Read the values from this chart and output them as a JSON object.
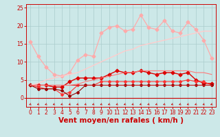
{
  "xlabel": "Vent moyen/en rafales ( km/h )",
  "bg_color": "#cce8e8",
  "grid_color": "#aacccc",
  "xlim": [
    -0.5,
    23.5
  ],
  "ylim": [
    -2.5,
    26
  ],
  "xticks": [
    0,
    1,
    2,
    3,
    4,
    5,
    6,
    7,
    8,
    9,
    10,
    11,
    12,
    13,
    14,
    15,
    16,
    17,
    18,
    19,
    20,
    21,
    22,
    23
  ],
  "yticks": [
    0,
    5,
    10,
    15,
    20,
    25
  ],
  "lines": [
    {
      "x": [
        0,
        1,
        2,
        3,
        4,
        5,
        6,
        7,
        8,
        9,
        10,
        11,
        12,
        13,
        14,
        15,
        16,
        17,
        18,
        19,
        20,
        21,
        22,
        23
      ],
      "y": [
        15.5,
        11.5,
        8.5,
        6.5,
        6.0,
        7.0,
        10.5,
        12.0,
        11.5,
        18.0,
        19.5,
        20.0,
        18.5,
        19.0,
        23.0,
        19.5,
        19.0,
        21.5,
        18.5,
        18.0,
        21.0,
        19.0,
        16.0,
        11.0
      ],
      "color": "#ffaaaa",
      "lw": 0.9,
      "marker": "D",
      "ms": 2.5
    },
    {
      "x": [
        0,
        1,
        2,
        3,
        4,
        5,
        6,
        7,
        8,
        9,
        10,
        11,
        12,
        13,
        14,
        15,
        16,
        17,
        18,
        19,
        20,
        21,
        22,
        23
      ],
      "y": [
        3.5,
        3.5,
        3.5,
        3.0,
        3.0,
        4.5,
        5.5,
        5.5,
        5.5,
        5.5,
        6.5,
        7.5,
        7.0,
        7.0,
        7.5,
        7.0,
        6.5,
        7.0,
        7.0,
        6.5,
        7.0,
        5.0,
        4.0,
        4.0
      ],
      "color": "#dd0000",
      "lw": 1.0,
      "marker": "D",
      "ms": 2.5
    },
    {
      "x": [
        0,
        1,
        2,
        3,
        4,
        5,
        6,
        7,
        8,
        9,
        10,
        11,
        12,
        13,
        14,
        15,
        16,
        17,
        18,
        19,
        20,
        21,
        22,
        23
      ],
      "y": [
        3.5,
        3.0,
        2.5,
        2.5,
        1.0,
        1.5,
        3.5,
        3.5,
        3.5,
        4.5,
        4.5,
        4.5,
        4.5,
        4.5,
        4.5,
        4.5,
        4.5,
        4.5,
        4.5,
        4.5,
        5.0,
        4.5,
        4.5,
        3.5
      ],
      "color": "#ff3333",
      "lw": 0.8,
      "marker": "D",
      "ms": 2.0
    },
    {
      "x": [
        0,
        1,
        2,
        3,
        4,
        5,
        6,
        7,
        8,
        9,
        10,
        11,
        12,
        13,
        14,
        15,
        16,
        17,
        18,
        19,
        20,
        21,
        22,
        23
      ],
      "y": [
        3.5,
        2.5,
        2.5,
        2.5,
        2.0,
        0.5,
        1.5,
        3.5,
        3.5,
        3.5,
        3.5,
        3.5,
        3.5,
        3.5,
        3.5,
        3.5,
        3.5,
        3.5,
        3.5,
        3.5,
        3.5,
        3.5,
        3.5,
        3.5
      ],
      "color": "#990000",
      "lw": 0.8,
      "marker": "D",
      "ms": 2.0
    },
    {
      "x": [
        0,
        1,
        2,
        3,
        4,
        5,
        6,
        7,
        8,
        9,
        10,
        11,
        12,
        13,
        14,
        15,
        16,
        17,
        18,
        19,
        20,
        21,
        22,
        23
      ],
      "y": [
        3.5,
        3.5,
        3.5,
        3.5,
        3.5,
        3.5,
        3.5,
        3.5,
        3.5,
        3.5,
        3.5,
        3.5,
        3.5,
        3.5,
        3.5,
        3.5,
        3.5,
        3.5,
        3.5,
        3.5,
        3.5,
        3.5,
        3.5,
        3.5
      ],
      "color": "#cc2222",
      "lw": 0.8,
      "marker": null,
      "ms": 0
    },
    {
      "x": [
        0,
        1,
        2,
        3,
        4,
        5,
        6,
        7,
        8,
        9,
        10,
        11,
        12,
        13,
        14,
        15,
        16,
        17,
        18,
        19,
        20,
        21,
        22,
        23
      ],
      "y": [
        3.5,
        4.0,
        5.0,
        5.5,
        6.0,
        6.5,
        7.0,
        8.0,
        9.0,
        10.0,
        11.0,
        12.0,
        13.0,
        13.5,
        14.5,
        15.0,
        15.5,
        16.0,
        16.5,
        17.0,
        17.5,
        18.0,
        18.5,
        18.5
      ],
      "color": "#ffcccc",
      "lw": 1.0,
      "marker": null,
      "ms": 0
    },
    {
      "x": [
        0,
        1,
        2,
        3,
        4,
        5,
        6,
        7,
        8,
        9,
        10,
        11,
        12,
        13,
        14,
        15,
        16,
        17,
        18,
        19,
        20,
        21,
        22,
        23
      ],
      "y": [
        3.5,
        3.5,
        3.5,
        3.5,
        3.5,
        3.5,
        3.8,
        4.5,
        5.0,
        5.5,
        6.0,
        6.5,
        7.0,
        7.0,
        7.5,
        7.5,
        7.5,
        7.5,
        7.5,
        7.5,
        7.5,
        7.0,
        7.0,
        6.5
      ],
      "color": "#ff7777",
      "lw": 0.8,
      "marker": null,
      "ms": 0
    }
  ],
  "xlabel_color": "#cc0000",
  "tick_color": "#cc0000",
  "axis_color": "#cc0000",
  "tick_fontsize": 5.5,
  "xlabel_fontsize": 7.5
}
